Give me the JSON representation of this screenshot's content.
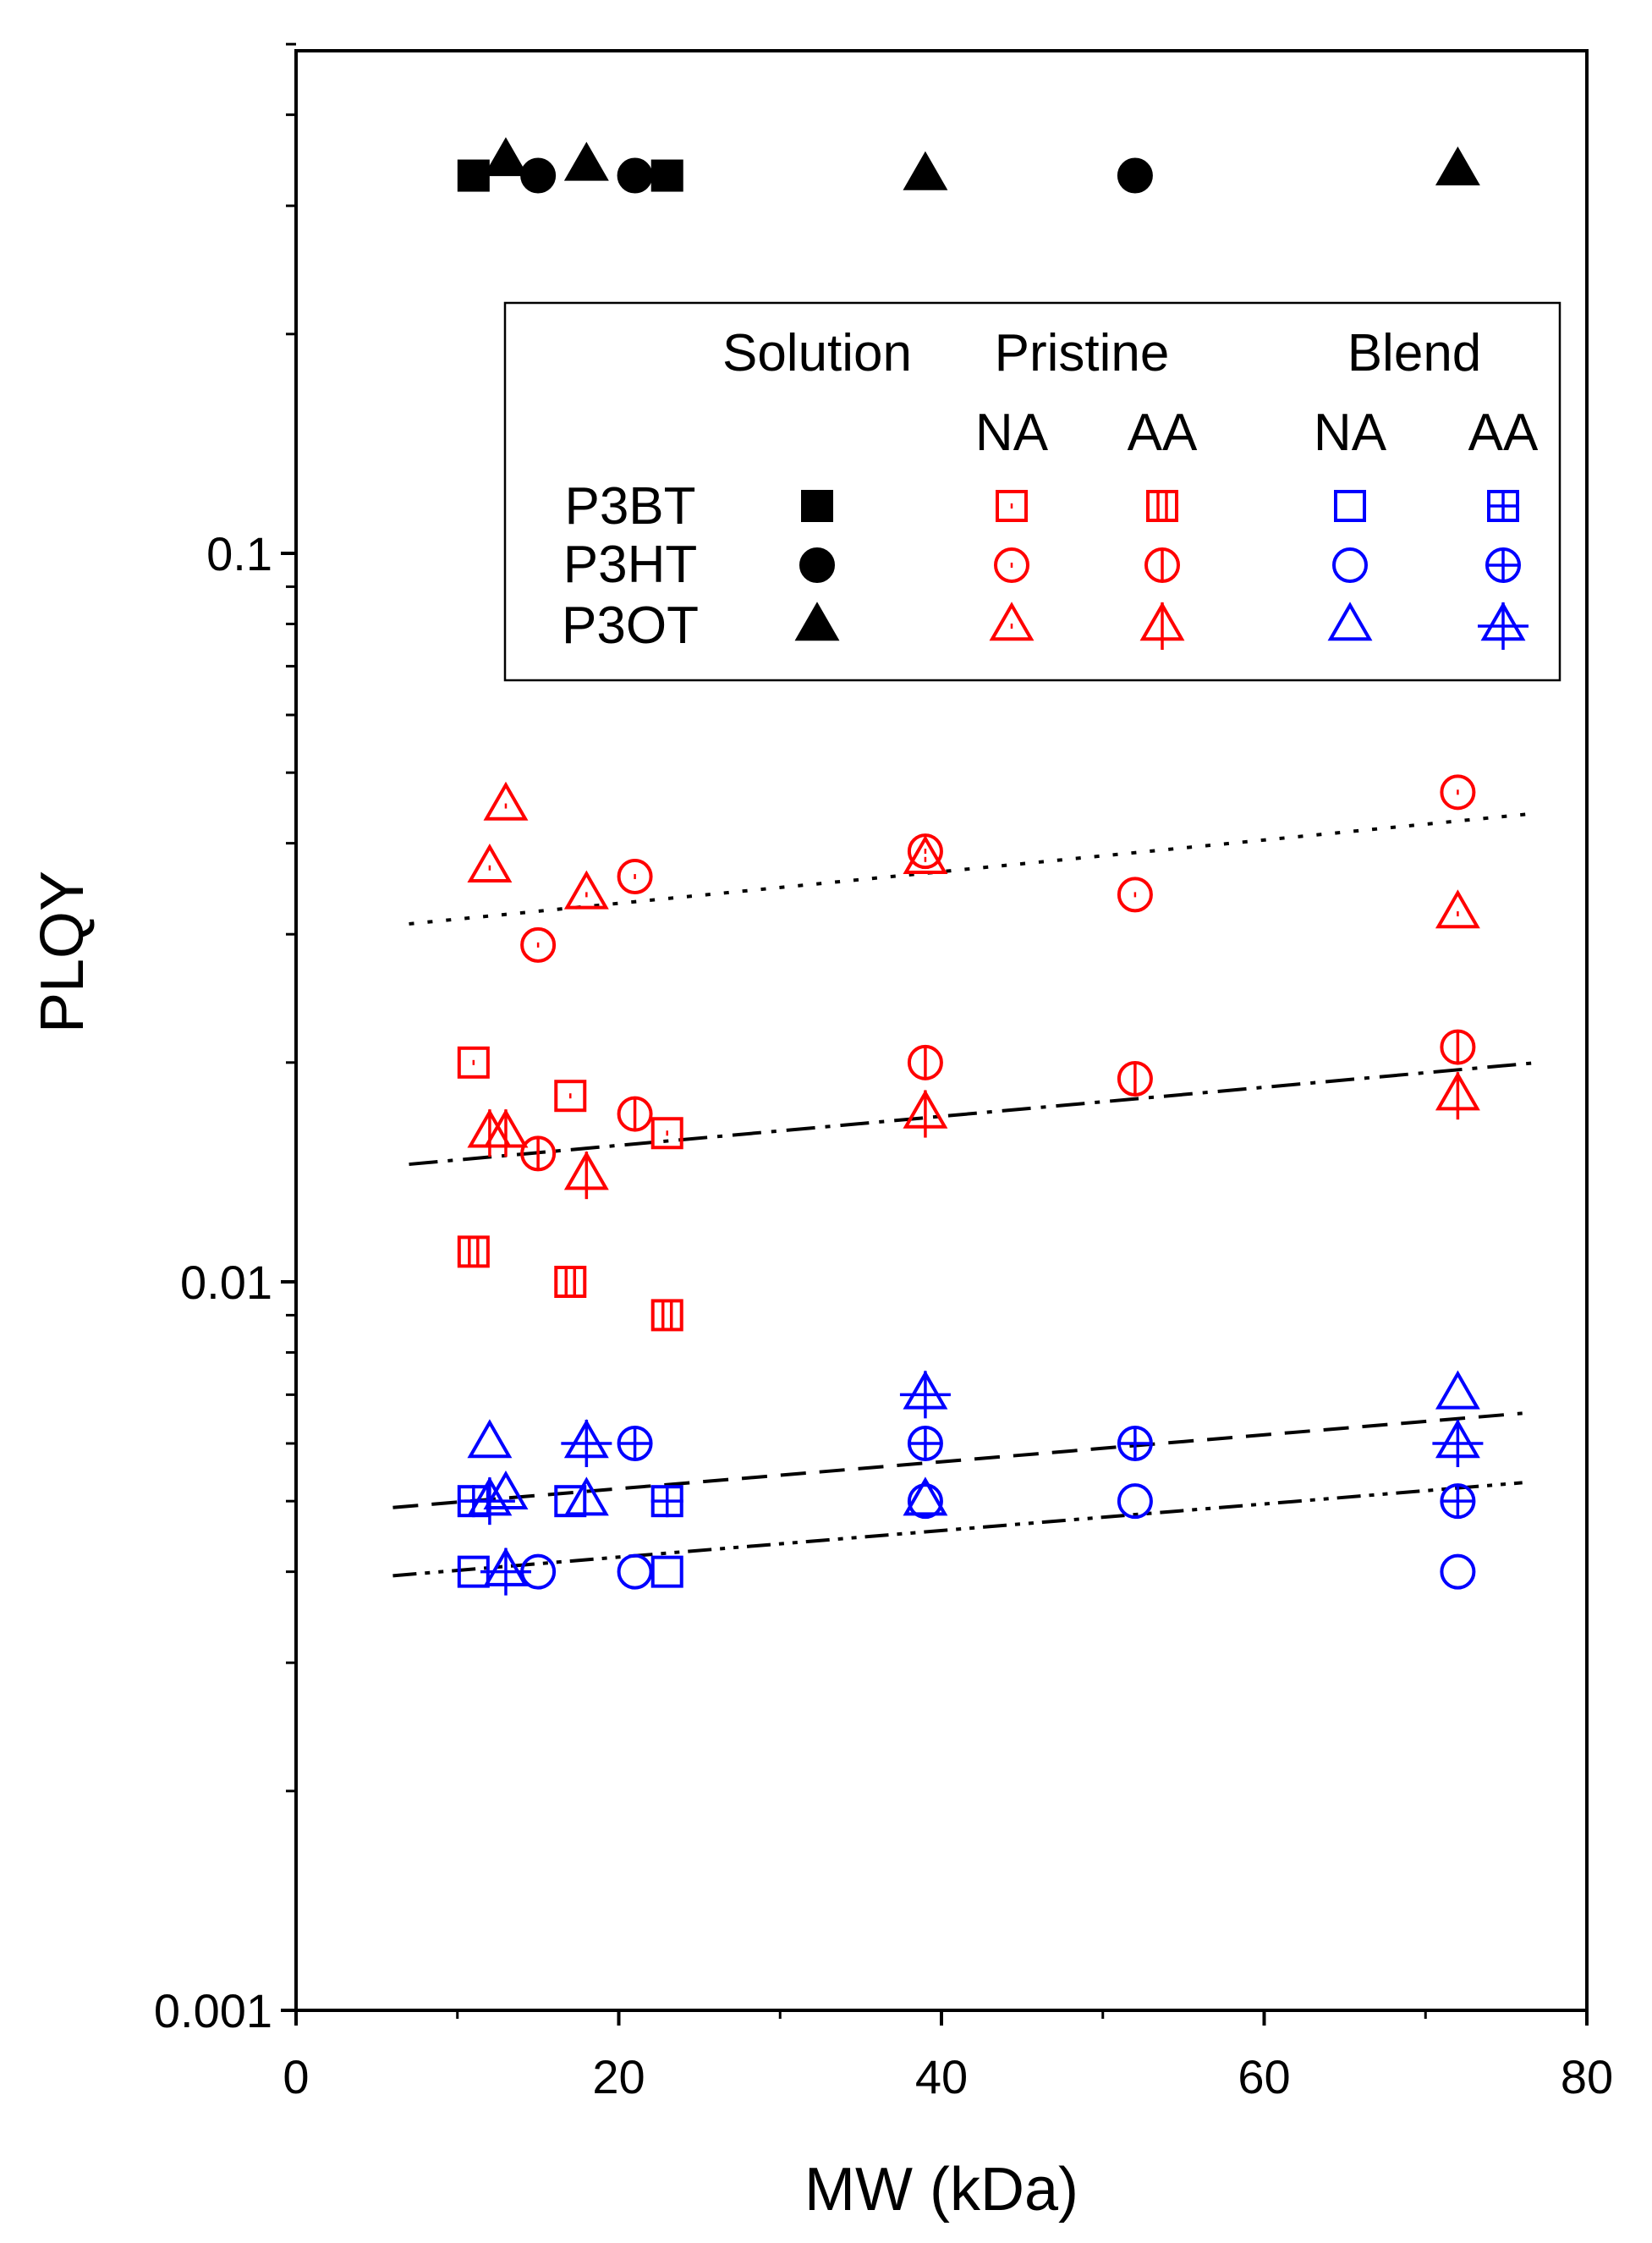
{
  "chart_data": {
    "type": "scatter",
    "xlabel": "MW (kDa)",
    "ylabel": "PLQY",
    "xlim": [
      0,
      80
    ],
    "ylim": [
      0.001,
      0.5
    ],
    "yscale": "log",
    "xticks": [
      0,
      20,
      40,
      60,
      80
    ],
    "xtick_labels": [
      "0",
      "20",
      "40",
      "60",
      "80"
    ],
    "yticks": [
      0.001,
      0.01,
      0.1
    ],
    "ytick_labels": [
      "0.001",
      "0.01",
      "0.1"
    ],
    "grid": false,
    "legend": {
      "placement": "upper-right",
      "headers": {
        "solution": "Solution",
        "pristine": "Pristine",
        "blend": "Blend"
      },
      "subheaders": [
        "NA",
        "AA",
        "NA",
        "AA"
      ],
      "rows": [
        "P3BT",
        "P3HT",
        "P3OT"
      ],
      "columns": [
        "solution",
        "pristine_na",
        "pristine_aa",
        "blend_na",
        "blend_aa"
      ]
    },
    "colors": {
      "solution": "#000000",
      "pristine": "#ff0000",
      "blend": "#0000ff"
    },
    "series": [
      {
        "name": "P3BT Solution",
        "polymer": "P3BT",
        "condition": "solution",
        "shape": "square",
        "fill": true,
        "points": [
          [
            11,
            0.33
          ],
          [
            23,
            0.33
          ]
        ]
      },
      {
        "name": "P3HT Solution",
        "polymer": "P3HT",
        "condition": "solution",
        "shape": "circle",
        "fill": true,
        "points": [
          [
            15,
            0.33
          ],
          [
            21,
            0.33
          ],
          [
            52,
            0.33
          ]
        ]
      },
      {
        "name": "P3OT Solution",
        "polymer": "P3OT",
        "condition": "solution",
        "shape": "triangle",
        "fill": true,
        "points": [
          [
            13,
            0.345
          ],
          [
            18,
            0.34
          ],
          [
            39,
            0.33
          ],
          [
            72,
            0.335
          ]
        ]
      },
      {
        "name": "P3BT Pristine NA",
        "polymer": "P3BT",
        "condition": "pristine_na",
        "shape": "square",
        "mark": "dot",
        "points": [
          [
            11,
            0.02
          ],
          [
            17,
            0.018
          ],
          [
            23,
            0.016
          ]
        ]
      },
      {
        "name": "P3HT Pristine NA",
        "polymer": "P3HT",
        "condition": "pristine_na",
        "shape": "circle",
        "mark": "dot",
        "points": [
          [
            15,
            0.029
          ],
          [
            21,
            0.036
          ],
          [
            39,
            0.039
          ],
          [
            52,
            0.034
          ],
          [
            72,
            0.047
          ]
        ]
      },
      {
        "name": "P3OT Pristine NA",
        "polymer": "P3OT",
        "condition": "pristine_na",
        "shape": "triangle",
        "mark": "dot",
        "points": [
          [
            12,
            0.037
          ],
          [
            13,
            0.045
          ],
          [
            18,
            0.034
          ],
          [
            39,
            0.038
          ],
          [
            72,
            0.032
          ]
        ]
      },
      {
        "name": "P3BT Pristine AA",
        "polymer": "P3BT",
        "condition": "pristine_aa",
        "shape": "square",
        "mark": "dbar",
        "points": [
          [
            11,
            0.011
          ],
          [
            17,
            0.01
          ],
          [
            23,
            0.009
          ]
        ]
      },
      {
        "name": "P3HT Pristine AA",
        "polymer": "P3HT",
        "condition": "pristine_aa",
        "shape": "circle",
        "mark": "bar",
        "points": [
          [
            15,
            0.015
          ],
          [
            21,
            0.017
          ],
          [
            39,
            0.02
          ],
          [
            52,
            0.019
          ],
          [
            72,
            0.021
          ]
        ]
      },
      {
        "name": "P3OT Pristine AA",
        "polymer": "P3OT",
        "condition": "pristine_aa",
        "shape": "triangle",
        "mark": "bar",
        "points": [
          [
            12,
            0.016
          ],
          [
            13,
            0.016
          ],
          [
            18,
            0.014
          ],
          [
            39,
            0.017
          ],
          [
            72,
            0.018
          ]
        ]
      },
      {
        "name": "P3BT Blend NA",
        "polymer": "P3BT",
        "condition": "blend_na",
        "shape": "square",
        "mark": "none",
        "points": [
          [
            11,
            0.004
          ],
          [
            17,
            0.005
          ],
          [
            23,
            0.004
          ]
        ]
      },
      {
        "name": "P3HT Blend NA",
        "polymer": "P3HT",
        "condition": "blend_na",
        "shape": "circle",
        "mark": "none",
        "points": [
          [
            15,
            0.004
          ],
          [
            21,
            0.004
          ],
          [
            39,
            0.005
          ],
          [
            52,
            0.005
          ],
          [
            72,
            0.004
          ]
        ]
      },
      {
        "name": "P3OT Blend NA",
        "polymer": "P3OT",
        "condition": "blend_na",
        "shape": "triangle",
        "mark": "none",
        "points": [
          [
            12,
            0.006
          ],
          [
            13,
            0.0051
          ],
          [
            18,
            0.005
          ],
          [
            39,
            0.005
          ],
          [
            72,
            0.007
          ]
        ]
      },
      {
        "name": "P3BT Blend AA",
        "polymer": "P3BT",
        "condition": "blend_aa",
        "shape": "square",
        "mark": "plus",
        "points": [
          [
            11,
            0.005
          ],
          [
            23,
            0.005
          ]
        ]
      },
      {
        "name": "P3HT Blend AA",
        "polymer": "P3HT",
        "condition": "blend_aa",
        "shape": "circle",
        "mark": "plus",
        "points": [
          [
            21,
            0.006
          ],
          [
            39,
            0.006
          ],
          [
            52,
            0.006
          ],
          [
            72,
            0.005
          ]
        ]
      },
      {
        "name": "P3OT Blend AA",
        "polymer": "P3OT",
        "condition": "blend_aa",
        "shape": "triangle",
        "mark": "plus",
        "points": [
          [
            12,
            0.005
          ],
          [
            13,
            0.004
          ],
          [
            18,
            0.006
          ],
          [
            39,
            0.007
          ],
          [
            72,
            0.006
          ]
        ]
      }
    ],
    "trend_lines": [
      {
        "name": "Pristine NA fit",
        "style": "dotted",
        "x": [
          7,
          77
        ],
        "y": [
          0.031,
          0.044
        ]
      },
      {
        "name": "Pristine AA fit",
        "style": "dash-dot",
        "x": [
          7,
          77
        ],
        "y": [
          0.0145,
          0.02
        ]
      },
      {
        "name": "Blend AA fit",
        "style": "dashed",
        "x": [
          6,
          76
        ],
        "y": [
          0.0049,
          0.0066
        ]
      },
      {
        "name": "Blend NA fit",
        "style": "dash-dot-dot",
        "x": [
          6,
          76
        ],
        "y": [
          0.00395,
          0.0053
        ]
      }
    ]
  }
}
